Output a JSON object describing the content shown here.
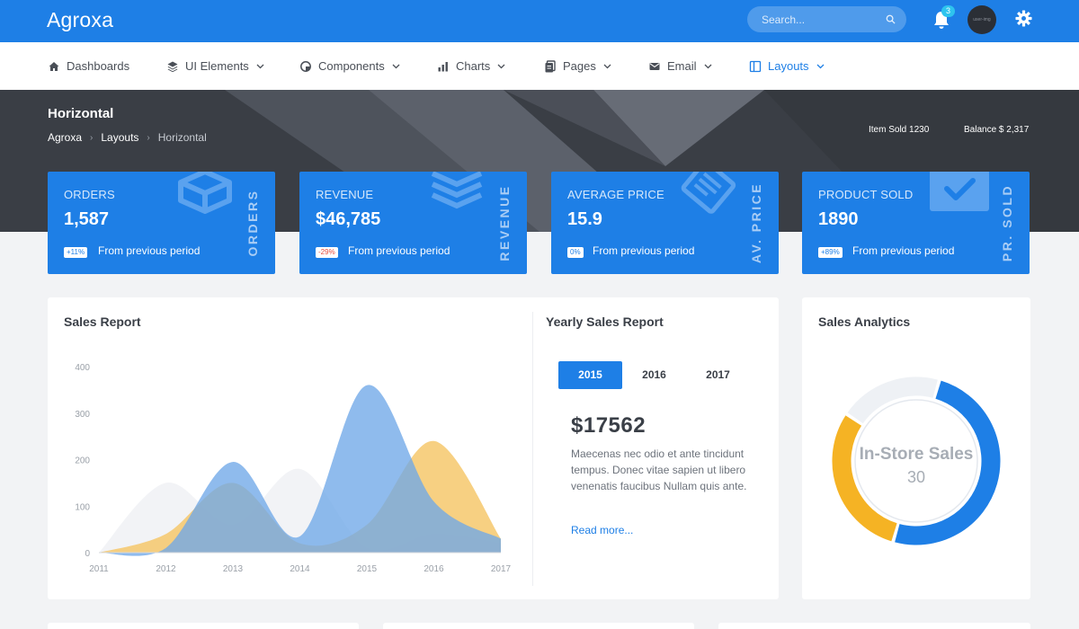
{
  "app": {
    "logo": "Agroxa"
  },
  "topbar": {
    "search_placeholder": "Search...",
    "notification_count": "3",
    "avatar_text": "user-img"
  },
  "nav": {
    "items": [
      {
        "label": "Dashboards",
        "icon": "home-icon",
        "chevron": false
      },
      {
        "label": "UI Elements",
        "icon": "layers-icon",
        "chevron": true
      },
      {
        "label": "Components",
        "icon": "palette-icon",
        "chevron": true
      },
      {
        "label": "Charts",
        "icon": "chart-icon",
        "chevron": true
      },
      {
        "label": "Pages",
        "icon": "pages-icon",
        "chevron": true
      },
      {
        "label": "Email",
        "icon": "email-icon",
        "chevron": true
      },
      {
        "label": "Layouts",
        "icon": "layout-icon",
        "chevron": true,
        "active": true
      }
    ]
  },
  "header": {
    "title": "Horizontal",
    "breadcrumb": [
      "Agroxa",
      "Layouts",
      "Horizontal"
    ],
    "item_sold": "Item Sold 1230",
    "balance": "Balance $ 2,317"
  },
  "stats": [
    {
      "label": "ORDERS",
      "value": "1,587",
      "change": "+11%",
      "change_color": "#1e7fe6",
      "sub": "From previous period",
      "vertical": "ORDERS",
      "icon": "cube-icon"
    },
    {
      "label": "REVENUE",
      "value": "$46,785",
      "change": "-29%",
      "change_color": "#e74c3c",
      "sub": "From previous period",
      "vertical": "REVENUE",
      "icon": "layers-icon"
    },
    {
      "label": "AVERAGE PRICE",
      "value": "15.9",
      "change": "0%",
      "change_color": "#1e7fe6",
      "sub": "From previous period",
      "vertical": "AV. PRICE",
      "icon": "tag-icon"
    },
    {
      "label": "PRODUCT SOLD",
      "value": "1890",
      "change": "+89%",
      "change_color": "#1e7fe6",
      "sub": "From previous period",
      "vertical": "PR. SOLD",
      "icon": "check-icon"
    }
  ],
  "sales_report": {
    "title": "Sales Report"
  },
  "chart_data": {
    "type": "area",
    "x": [
      "2011",
      "2012",
      "2013",
      "2014",
      "2015",
      "2016",
      "2017"
    ],
    "ylim": [
      0,
      400
    ],
    "yticks": [
      0,
      100,
      200,
      300,
      400
    ],
    "series": [
      {
        "color": "#e8eaee",
        "values": [
          0,
          150,
          60,
          180,
          10,
          40,
          20
        ]
      },
      {
        "color": "#f5c463",
        "values": [
          0,
          40,
          150,
          20,
          60,
          240,
          30
        ]
      },
      {
        "color": "#6fa8e8",
        "values": [
          0,
          10,
          195,
          35,
          360,
          110,
          30
        ]
      }
    ]
  },
  "yearly": {
    "title": "Yearly Sales Report",
    "years": [
      "2015",
      "2016",
      "2017"
    ],
    "active_year": "2015",
    "amount": "$17562",
    "description": "Maecenas nec odio et ante tincidunt tempus. Donec vitae sapien ut libero venenatis faucibus Nullam quis ante.",
    "read_more": "Read more..."
  },
  "analytics": {
    "title": "Sales Analytics",
    "center_label": "In-Store Sales",
    "center_value": "30",
    "segments": [
      {
        "value": 50,
        "color": "#1e7fe6"
      },
      {
        "value": 30,
        "color": "#f5b324"
      },
      {
        "value": 20,
        "color": "#eef1f5"
      }
    ]
  }
}
